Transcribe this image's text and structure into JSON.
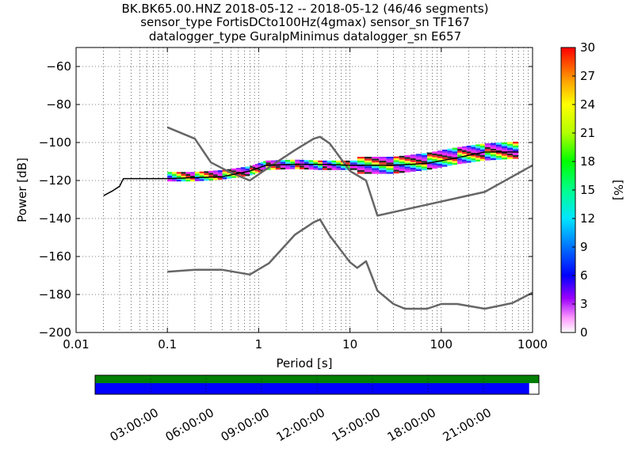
{
  "titles": {
    "line1": "BK.BK65.00.HNZ   2018-05-12 -- 2018-05-12  (46/46 segments)",
    "line2": "sensor_type FortisDCto100Hz(4gmax) sensor_sn TF167",
    "line3": "datalogger_type GuralpMinimus datalogger_sn E657"
  },
  "chart_data": [
    {
      "type": "line",
      "xlabel": "Period [s]",
      "ylabel": "Power [dB]",
      "xscale": "log",
      "xlim": [
        0.01,
        1000
      ],
      "ylim": [
        -200,
        -50
      ],
      "xtick_labels": [
        "0.01",
        "0.1",
        "1",
        "10",
        "100",
        "1000"
      ],
      "ytick_labels": [
        "−60",
        "−80",
        "−100",
        "−120",
        "−140",
        "−160",
        "−180",
        "−200"
      ],
      "ytick_values": [
        -60,
        -80,
        -100,
        -120,
        -140,
        -160,
        -180,
        -200
      ],
      "grid": true,
      "series": [
        {
          "x": [
            0.1,
            0.2,
            0.3,
            0.5,
            0.8,
            1.3,
            2.5,
            4,
            4.7,
            6,
            10,
            15,
            20,
            300,
            1000
          ],
          "y": [
            -92,
            -98,
            -110.5,
            -116,
            -120,
            -113,
            -104,
            -98,
            -97,
            -100.5,
            -115,
            -120,
            -138.5,
            -126,
            -112
          ]
        },
        {
          "x": [
            0.1,
            0.2,
            0.4,
            0.8,
            1.3,
            2.5,
            4,
            4.7,
            6,
            10,
            12,
            15,
            20,
            30,
            40,
            70,
            100,
            150,
            300,
            600,
            1000
          ],
          "y": [
            -168,
            -167,
            -167,
            -169.5,
            -163.5,
            -148.5,
            -142,
            -140.5,
            -149,
            -163,
            -166,
            -162.5,
            -178,
            -185,
            -187.5,
            -187.5,
            -185,
            -185,
            -187.5,
            -184.5,
            -179
          ]
        },
        {
          "x": [
            0.02,
            0.025,
            0.03,
            0.033,
            0.05,
            0.1,
            0.2,
            0.4,
            0.8,
            1.2,
            2.5,
            5,
            10,
            30,
            70,
            150,
            300,
            700
          ],
          "y": [
            -128,
            -125.5,
            -123,
            -119,
            -119,
            -119,
            -118.5,
            -118,
            -115,
            -112,
            -111.5,
            -111.5,
            -112,
            -112,
            -111,
            -108,
            -105,
            -105
          ]
        }
      ],
      "ppsd_band": {
        "x": [
          0.1,
          0.2,
          0.4,
          0.8,
          1.2,
          2.5,
          5,
          10,
          30,
          70,
          150,
          300,
          700
        ],
        "y": [
          -118,
          -118,
          -117,
          -115,
          -112,
          -111.5,
          -112,
          -112,
          -112,
          -110,
          -107,
          -105,
          -104
        ]
      }
    },
    {
      "type": "heatmap",
      "colorbar_label": "[%]",
      "colorbar_ticks": [
        "30",
        "27",
        "24",
        "21",
        "18",
        "15",
        "12",
        "9",
        "6",
        "3",
        "0"
      ],
      "colorbar_values": [
        30,
        27,
        24,
        21,
        18,
        15,
        12,
        9,
        6,
        3,
        0
      ],
      "vmin": 0,
      "vmax": 30
    },
    {
      "type": "bar",
      "timeline_labels": [
        "03:00:00",
        "06:00:00",
        "09:00:00",
        "12:00:00",
        "15:00:00",
        "18:00:00",
        "21:00:00"
      ],
      "coverage_fraction_green": 1.0,
      "coverage_fraction_blue": 0.978,
      "colors": {
        "green": "#007f00",
        "blue": "#0000ff"
      }
    }
  ],
  "colors": {
    "reference_curves": "#666666",
    "median_line": "#000000",
    "frame": "#000000"
  }
}
